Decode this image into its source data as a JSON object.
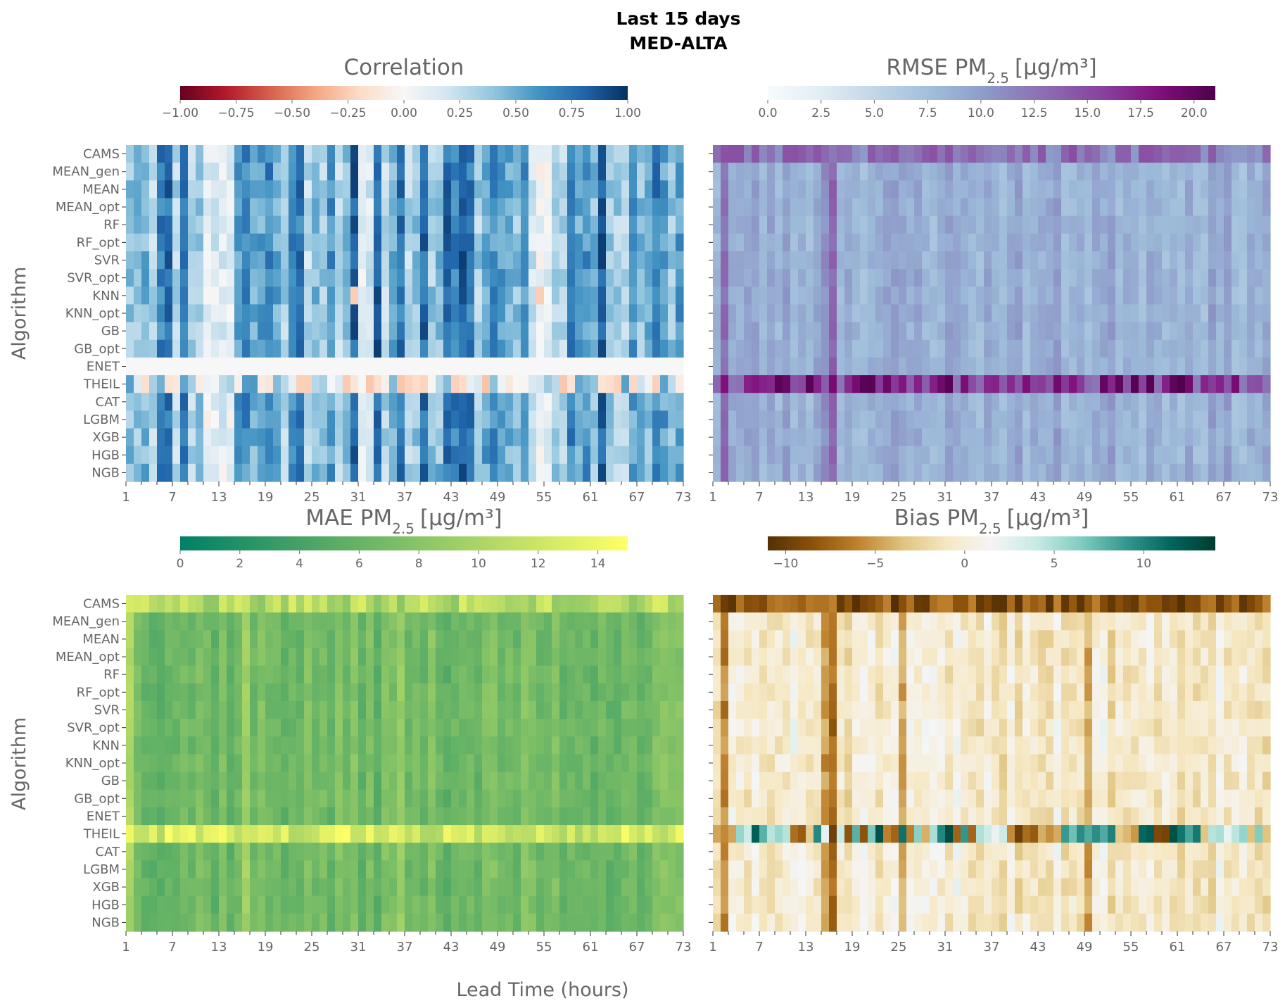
{
  "figure": {
    "title_line1": "Last 15 days",
    "title_line2": "MED-ALTA",
    "xlabel": "Lead Time (hours)",
    "ylabel": "Algorithm"
  },
  "colors": {
    "text_gray": "#666666",
    "title_black": "#000000"
  },
  "chart_data": [
    {
      "type": "heatmap",
      "id": "corr",
      "title": "Correlation",
      "title_base": "",
      "colormap": "RdBu",
      "vmin": -1.0,
      "vmax": 1.0,
      "colorbar_ticks": [
        "−1.00",
        "−0.75",
        "−0.50",
        "−0.25",
        "0.00",
        "0.25",
        "0.50",
        "0.75",
        "1.00"
      ],
      "colorbar_tick_values": [
        -1.0,
        -0.75,
        -0.5,
        -0.25,
        0.0,
        0.25,
        0.5,
        0.75,
        1.0
      ],
      "algorithms": [
        "CAMS",
        "MEAN_gen",
        "MEAN",
        "MEAN_opt",
        "RF",
        "RF_opt",
        "SVR",
        "SVR_opt",
        "KNN",
        "KNN_opt",
        "GB",
        "GB_opt",
        "ENET",
        "THEIL",
        "CAT",
        "LGBM",
        "XGB",
        "HGB",
        "NGB"
      ],
      "lead_time_ticks": [
        "1",
        "7",
        "13",
        "19",
        "25",
        "31",
        "37",
        "43",
        "49",
        "55",
        "61",
        "67",
        "73"
      ],
      "ylabel": "Algorithm",
      "show_yticklabels": true,
      "notes": "72 lead-time columns; mostly positive correlation 0.2-0.9; ENET row constant ~0.0; THEIL row mixed with some negatives"
    },
    {
      "type": "heatmap",
      "id": "rmse",
      "title": "RMSE PM",
      "title_base": "2.5",
      "title_unit": "[μg/m³]",
      "colormap": "BuPu",
      "vmin": 0.0,
      "vmax": 21.0,
      "colorbar_ticks": [
        "0.0",
        "2.5",
        "5.0",
        "7.5",
        "10.0",
        "12.5",
        "15.0",
        "17.5",
        "20.0"
      ],
      "colorbar_tick_values": [
        0.0,
        2.5,
        5.0,
        7.5,
        10.0,
        12.5,
        15.0,
        17.5,
        20.0
      ],
      "lead_time_ticks": [
        "1",
        "7",
        "13",
        "19",
        "25",
        "31",
        "37",
        "43",
        "49",
        "55",
        "61",
        "67",
        "73"
      ],
      "show_yticklabels": false,
      "notes": "Most cells 7-10; CAMS row 9-14; THEIL row 12-21; hour 2 and 16 columns elevated"
    },
    {
      "type": "heatmap",
      "id": "mae",
      "title": "MAE PM",
      "title_base": "2.5",
      "title_unit": "[μg/m³]",
      "colormap": "summer",
      "vmin": 0.0,
      "vmax": 15.0,
      "colorbar_ticks": [
        "0",
        "2",
        "4",
        "6",
        "8",
        "10",
        "12",
        "14"
      ],
      "colorbar_tick_values": [
        0,
        2,
        4,
        6,
        8,
        10,
        12,
        14
      ],
      "algorithms": [
        "CAMS",
        "MEAN_gen",
        "MEAN",
        "MEAN_opt",
        "RF",
        "RF_opt",
        "SVR",
        "SVR_opt",
        "KNN",
        "KNN_opt",
        "GB",
        "GB_opt",
        "ENET",
        "THEIL",
        "CAT",
        "LGBM",
        "XGB",
        "HGB",
        "NGB"
      ],
      "lead_time_ticks": [
        "1",
        "7",
        "13",
        "19",
        "25",
        "31",
        "37",
        "43",
        "49",
        "55",
        "61",
        "67",
        "73"
      ],
      "ylabel": "Algorithm",
      "show_yticklabels": true,
      "notes": "Most cells 5-8; CAMS row 8-13; THEIL row 10-15"
    },
    {
      "type": "heatmap",
      "id": "bias",
      "title": "Bias PM",
      "title_base": "2.5",
      "title_unit": "[μg/m³]",
      "colormap": "BrBG",
      "vmin": -11.0,
      "vmax": 14.0,
      "colorbar_ticks": [
        "−10",
        "−5",
        "0",
        "5",
        "10"
      ],
      "colorbar_tick_values": [
        -10,
        -5,
        0,
        5,
        10
      ],
      "lead_time_ticks": [
        "1",
        "7",
        "13",
        "19",
        "25",
        "31",
        "37",
        "43",
        "49",
        "55",
        "61",
        "67",
        "73"
      ],
      "show_yticklabels": false,
      "notes": "Most cells -4 to 4; CAMS row -6 to -10; THEIL row alternating strongly positive and negative"
    }
  ]
}
